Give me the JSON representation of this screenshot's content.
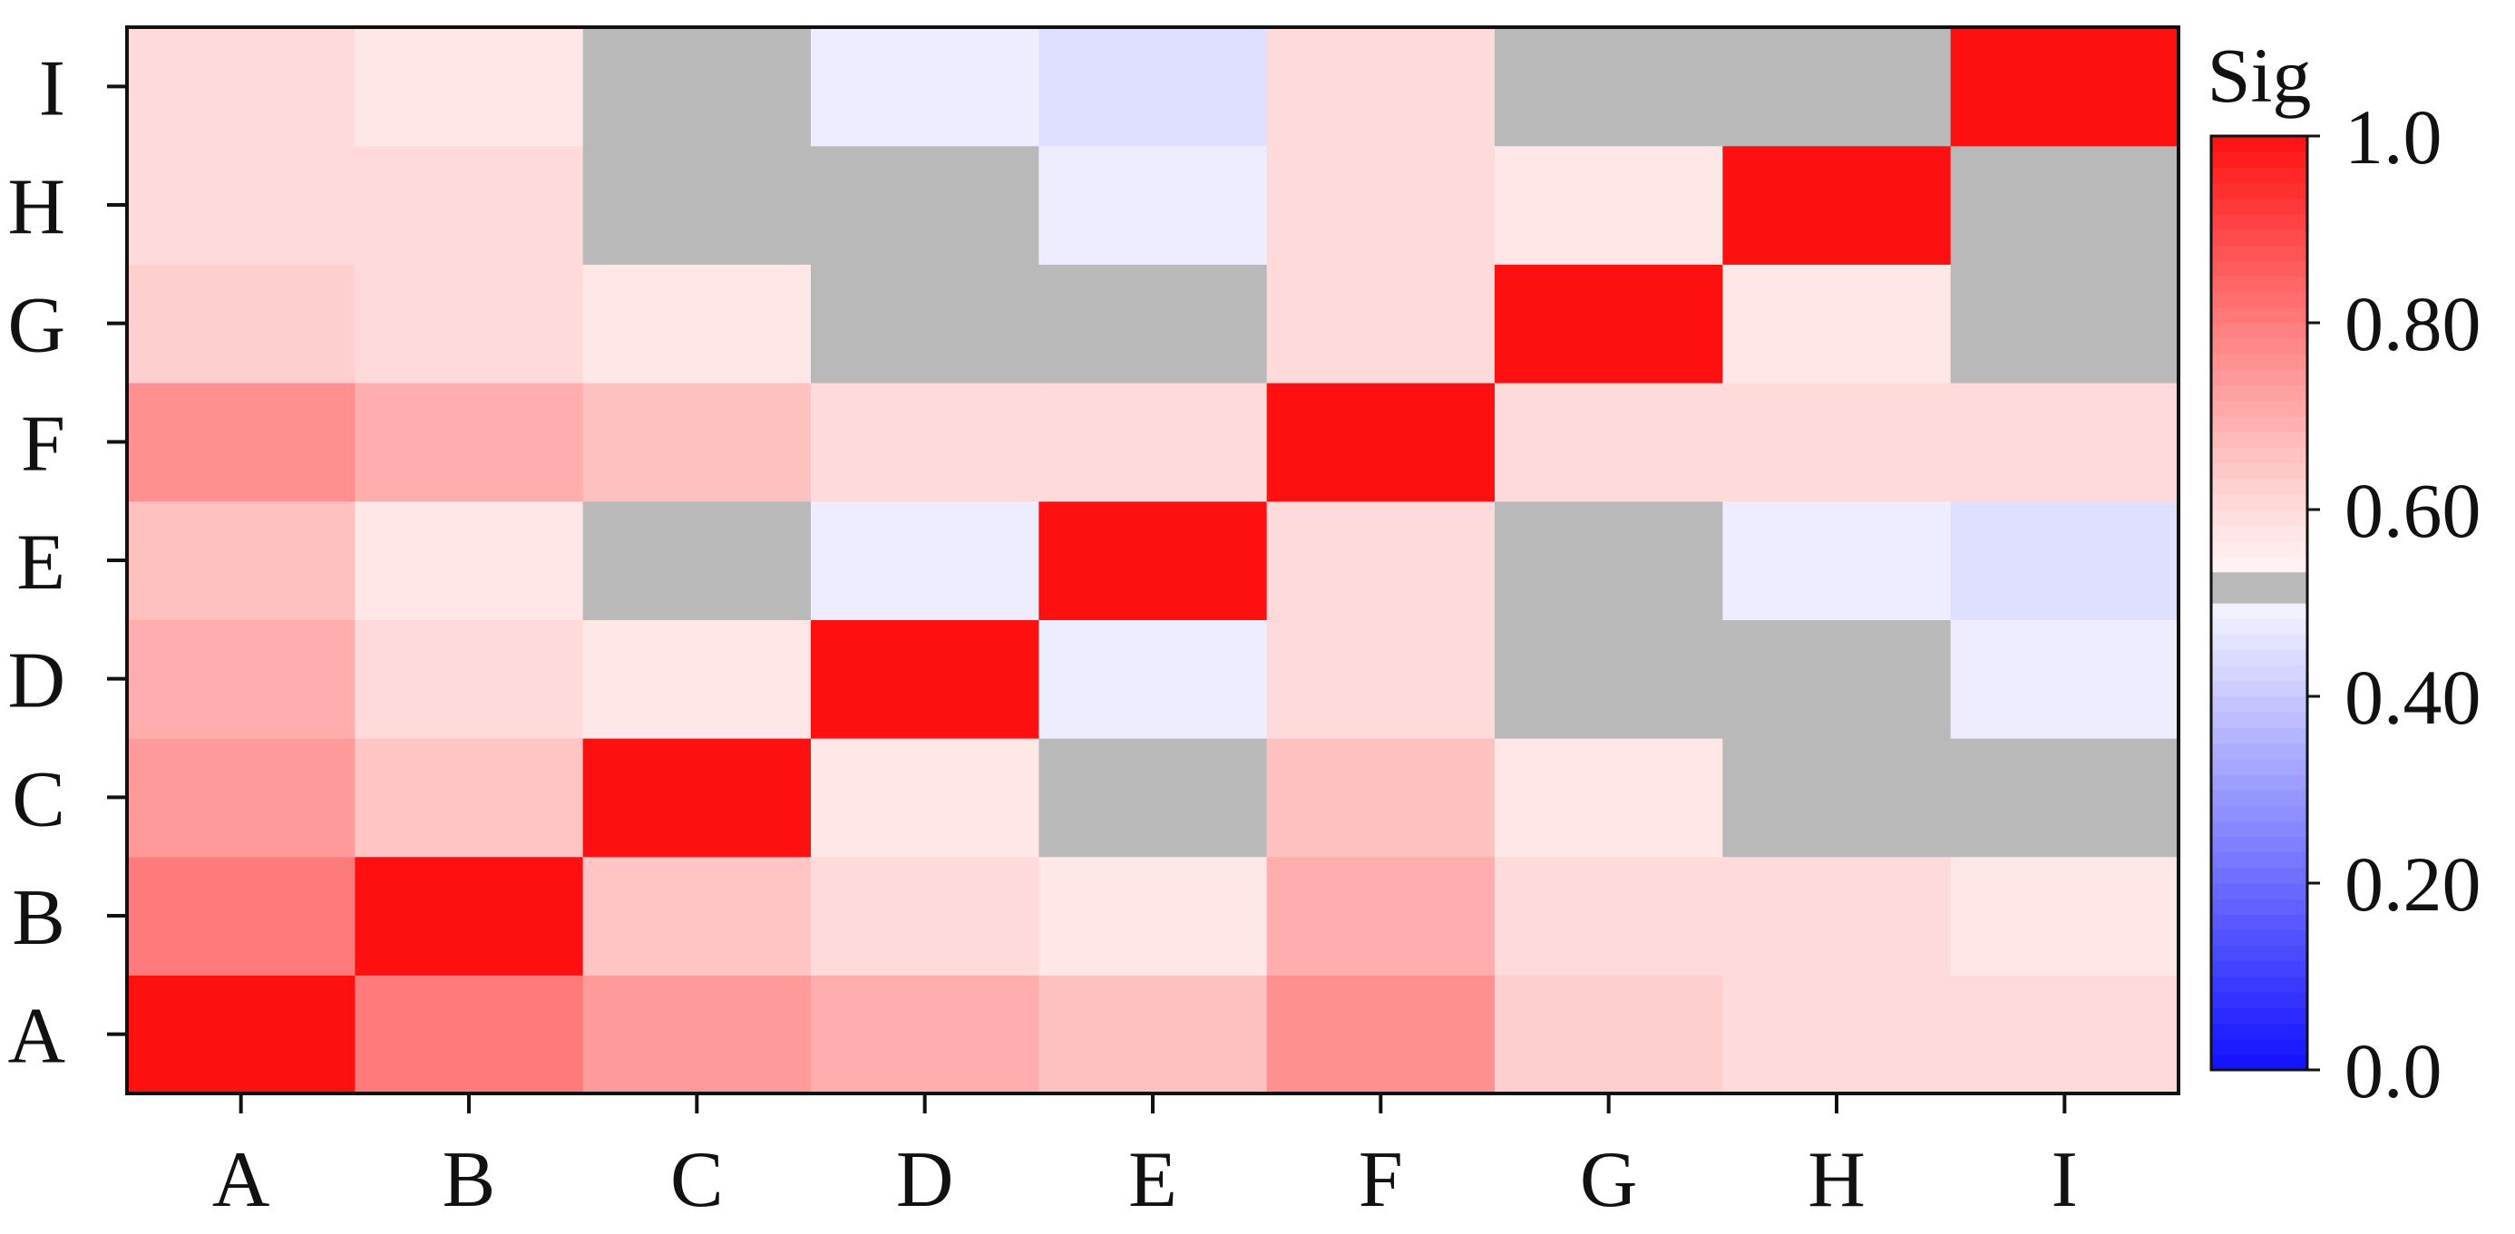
{
  "chart_data": {
    "type": "heatmap",
    "title": "",
    "xlabel": "",
    "ylabel": "",
    "x_categories": [
      "A",
      "B",
      "C",
      "D",
      "E",
      "F",
      "G",
      "H",
      "I"
    ],
    "y_categories": [
      "A",
      "B",
      "C",
      "D",
      "E",
      "F",
      "G",
      "H",
      "I"
    ],
    "values": [
      [
        1.0,
        0.8,
        0.74,
        0.7,
        0.66,
        0.76,
        0.63,
        0.6,
        0.6
      ],
      [
        0.8,
        1.0,
        0.65,
        0.6,
        0.57,
        0.7,
        0.6,
        0.6,
        0.57
      ],
      [
        0.74,
        0.65,
        1.0,
        0.57,
        null,
        0.66,
        0.57,
        null,
        null
      ],
      [
        0.7,
        0.6,
        0.57,
        1.0,
        0.48,
        0.6,
        null,
        null,
        0.48
      ],
      [
        0.66,
        0.57,
        null,
        0.48,
        1.0,
        0.6,
        null,
        0.48,
        0.45
      ],
      [
        0.76,
        0.7,
        0.66,
        0.6,
        0.6,
        1.0,
        0.6,
        0.6,
        0.6
      ],
      [
        0.63,
        0.6,
        0.57,
        null,
        null,
        0.6,
        1.0,
        0.57,
        null
      ],
      [
        0.6,
        0.6,
        null,
        null,
        0.48,
        0.6,
        0.57,
        1.0,
        null
      ],
      [
        0.6,
        0.57,
        null,
        0.48,
        0.45,
        0.6,
        null,
        null,
        1.0
      ]
    ],
    "na_color": "#b9b9b9",
    "colorbar": {
      "title": "Sig",
      "range": [
        0.0,
        1.0
      ],
      "ticks": [
        0.0,
        0.2,
        0.4,
        0.6,
        0.8,
        1.0
      ],
      "tick_labels": [
        "0.0",
        "0.20",
        "0.40",
        "0.60",
        "0.80",
        "1.0"
      ],
      "low_color": "#1010ff",
      "high_color": "#ff1010",
      "grey_band": [
        0.5,
        0.53
      ]
    },
    "grid": false,
    "legend_position": "right"
  }
}
